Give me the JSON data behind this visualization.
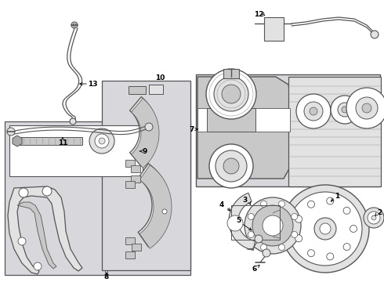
{
  "bg_color": "#ffffff",
  "lc": "#555555",
  "ll": "#999999",
  "fl": "#e2e2e2",
  "fm": "#c8c8c8",
  "fd": "#aaaaaa",
  "dot_bg": "#d8d8dc"
}
